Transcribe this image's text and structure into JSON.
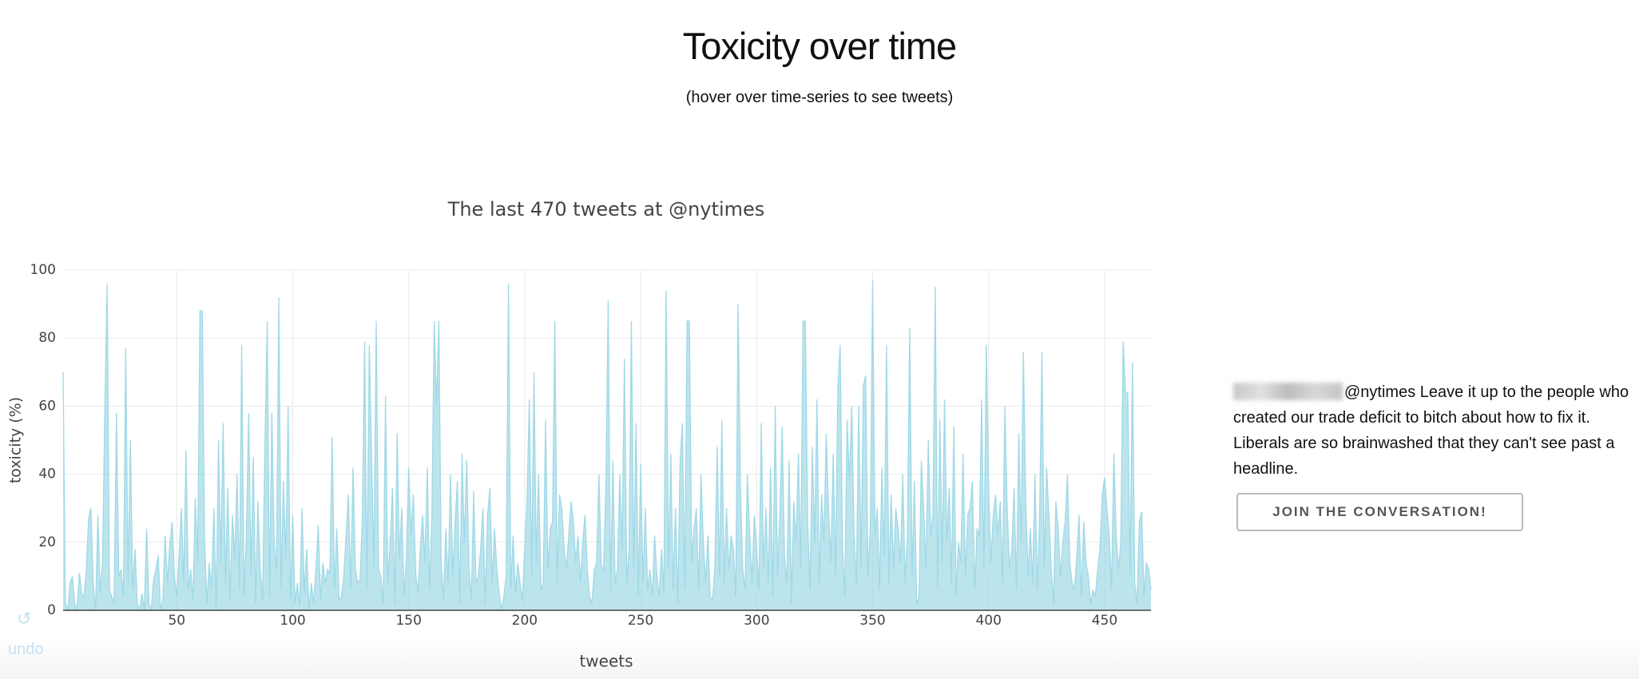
{
  "header": {
    "title": "Toxicity over time",
    "subtitle": "(hover over time-series to see tweets)"
  },
  "chart_data": {
    "type": "area",
    "title": "The last 470 tweets at @nytimes",
    "x_label": "tweets",
    "y_label": "toxicity (%)",
    "color": "#9fd9e6",
    "grid": true,
    "xlim": [
      1,
      470
    ],
    "ylim": [
      0,
      100
    ],
    "xticks": [
      50,
      100,
      150,
      200,
      250,
      300,
      350,
      400,
      450
    ],
    "yticks": [
      0,
      20,
      40,
      60,
      80,
      100
    ],
    "x": [
      1,
      2,
      3,
      4,
      5,
      6,
      7,
      8,
      9,
      10,
      11,
      12,
      13,
      14,
      15,
      16,
      17,
      18,
      19,
      20,
      21,
      22,
      23,
      24,
      25,
      26,
      27,
      28,
      29,
      30,
      31,
      32,
      33,
      34,
      35,
      36,
      37,
      38,
      39,
      40,
      41,
      42,
      43,
      44,
      45,
      46,
      47,
      48,
      49,
      50,
      51,
      52,
      53,
      54,
      55,
      56,
      57,
      58,
      59,
      60,
      61,
      62,
      63,
      64,
      65,
      66,
      67,
      68,
      69,
      70,
      71,
      72,
      73,
      74,
      75,
      76,
      77,
      78,
      79,
      80,
      81,
      82,
      83,
      84,
      85,
      86,
      87,
      88,
      89,
      90,
      91,
      92,
      93,
      94,
      95,
      96,
      97,
      98,
      99,
      100,
      101,
      102,
      103,
      104,
      105,
      106,
      107,
      108,
      109,
      110,
      111,
      112,
      113,
      114,
      115,
      116,
      117,
      118,
      119,
      120,
      121,
      122,
      123,
      124,
      125,
      126,
      127,
      128,
      129,
      130,
      131,
      132,
      133,
      134,
      135,
      136,
      137,
      138,
      139,
      140,
      141,
      142,
      143,
      144,
      145,
      146,
      147,
      148,
      149,
      150,
      151,
      152,
      153,
      154,
      155,
      156,
      157,
      158,
      159,
      160,
      161,
      162,
      163,
      164,
      165,
      166,
      167,
      168,
      169,
      170,
      171,
      172,
      173,
      174,
      175,
      176,
      177,
      178,
      179,
      180,
      181,
      182,
      183,
      184,
      185,
      186,
      187,
      188,
      189,
      190,
      191,
      192,
      193,
      194,
      195,
      196,
      197,
      198,
      199,
      200,
      201,
      202,
      203,
      204,
      205,
      206,
      207,
      208,
      209,
      210,
      211,
      212,
      213,
      214,
      215,
      216,
      217,
      218,
      219,
      220,
      221,
      222,
      223,
      224,
      225,
      226,
      227,
      228,
      229,
      230,
      231,
      232,
      233,
      234,
      235,
      236,
      237,
      238,
      239,
      240,
      241,
      242,
      243,
      244,
      245,
      246,
      247,
      248,
      249,
      250,
      251,
      252,
      253,
      254,
      255,
      256,
      257,
      258,
      259,
      260,
      261,
      262,
      263,
      264,
      265,
      266,
      267,
      268,
      269,
      270,
      271,
      272,
      273,
      274,
      275,
      276,
      277,
      278,
      279,
      280,
      281,
      282,
      283,
      284,
      285,
      286,
      287,
      288,
      289,
      290,
      291,
      292,
      293,
      294,
      295,
      296,
      297,
      298,
      299,
      300,
      301,
      302,
      303,
      304,
      305,
      306,
      307,
      308,
      309,
      310,
      311,
      312,
      313,
      314,
      315,
      316,
      317,
      318,
      319,
      320,
      321,
      322,
      323,
      324,
      325,
      326,
      327,
      328,
      329,
      330,
      331,
      332,
      333,
      334,
      335,
      336,
      337,
      338,
      339,
      340,
      341,
      342,
      343,
      344,
      345,
      346,
      347,
      348,
      349,
      350,
      351,
      352,
      353,
      354,
      355,
      356,
      357,
      358,
      359,
      360,
      361,
      362,
      363,
      364,
      365,
      366,
      367,
      368,
      369,
      370,
      371,
      372,
      373,
      374,
      375,
      376,
      377,
      378,
      379,
      380,
      381,
      382,
      383,
      384,
      385,
      386,
      387,
      388,
      389,
      390,
      391,
      392,
      393,
      394,
      395,
      396,
      397,
      398,
      399,
      400,
      401,
      402,
      403,
      404,
      405,
      406,
      407,
      408,
      409,
      410,
      411,
      412,
      413,
      414,
      415,
      416,
      417,
      418,
      419,
      420,
      421,
      422,
      423,
      424,
      425,
      426,
      427,
      428,
      429,
      430,
      431,
      432,
      433,
      434,
      435,
      436,
      437,
      438,
      439,
      440,
      441,
      442,
      443,
      444,
      445,
      446,
      447,
      448,
      449,
      450,
      451,
      452,
      453,
      454,
      455,
      456,
      457,
      458,
      459,
      460,
      461,
      462,
      463,
      464,
      465,
      466,
      467,
      468,
      469,
      470
    ],
    "values": [
      70,
      2,
      0,
      8,
      10,
      2,
      0,
      11,
      5,
      4,
      12,
      27,
      30,
      8,
      0,
      28,
      5,
      14,
      60,
      96,
      6,
      4,
      2,
      58,
      10,
      12,
      4,
      77,
      8,
      50,
      6,
      18,
      2,
      0,
      5,
      0,
      24,
      2,
      0,
      9,
      12,
      16,
      0,
      3,
      22,
      8,
      19,
      26,
      10,
      4,
      16,
      30,
      8,
      47,
      6,
      12,
      3,
      33,
      14,
      88,
      88,
      20,
      2,
      14,
      6,
      30,
      0,
      50,
      14,
      55,
      8,
      36,
      3,
      28,
      15,
      40,
      6,
      78,
      4,
      22,
      58,
      10,
      45,
      2,
      32,
      12,
      3,
      48,
      85,
      4,
      58,
      20,
      12,
      92,
      6,
      38,
      15,
      60,
      3,
      28,
      2,
      8,
      1,
      30,
      5,
      18,
      0,
      8,
      2,
      12,
      25,
      3,
      14,
      8,
      12,
      11,
      51,
      6,
      24,
      3,
      4,
      10,
      22,
      34,
      6,
      42,
      12,
      8,
      9,
      26,
      79,
      6,
      78,
      45,
      12,
      85,
      12,
      10,
      2,
      63,
      8,
      20,
      36,
      2,
      52,
      15,
      30,
      4,
      15,
      42,
      22,
      34,
      11,
      5,
      18,
      28,
      14,
      42,
      6,
      28,
      85,
      60,
      85,
      14,
      3,
      24,
      8,
      40,
      10,
      26,
      38,
      2,
      46,
      20,
      44,
      12,
      3,
      35,
      8,
      10,
      18,
      30,
      2,
      28,
      36,
      8,
      24,
      12,
      5,
      0,
      4,
      10,
      96,
      6,
      22,
      5,
      14,
      8,
      3,
      18,
      32,
      62,
      10,
      70,
      14,
      40,
      6,
      8,
      56,
      12,
      24,
      26,
      85,
      8,
      34,
      30,
      18,
      12,
      22,
      32,
      26,
      14,
      22,
      8,
      20,
      28,
      12,
      4,
      2,
      12,
      14,
      40,
      13,
      12,
      36,
      91,
      6,
      44,
      8,
      12,
      40,
      18,
      74,
      8,
      18,
      85,
      12,
      55,
      4,
      43,
      8,
      30,
      6,
      12,
      4,
      22,
      10,
      4,
      18,
      5,
      94,
      12,
      46,
      6,
      30,
      2,
      44,
      55,
      6,
      85,
      85,
      14,
      24,
      30,
      6,
      40,
      20,
      8,
      22,
      4,
      3,
      13,
      48,
      10,
      56,
      8,
      30,
      12,
      22,
      18,
      4,
      90,
      36,
      12,
      6,
      40,
      22,
      8,
      28,
      18,
      6,
      55,
      12,
      30,
      8,
      42,
      4,
      60,
      10,
      28,
      54,
      16,
      8,
      44,
      2,
      32,
      20,
      46,
      12,
      85,
      85,
      26,
      6,
      48,
      20,
      62,
      8,
      34,
      20,
      52,
      30,
      14,
      46,
      10,
      65,
      78,
      20,
      4,
      56,
      38,
      60,
      22,
      8,
      60,
      12,
      66,
      69,
      10,
      24,
      97,
      22,
      30,
      6,
      42,
      16,
      78,
      8,
      34,
      12,
      30,
      24,
      14,
      40,
      8,
      22,
      83,
      10,
      38,
      2,
      4,
      44,
      30,
      12,
      50,
      22,
      28,
      95,
      6,
      56,
      14,
      62,
      20,
      36,
      8,
      54,
      4,
      20,
      14,
      46,
      10,
      28,
      30,
      38,
      6,
      24,
      22,
      62,
      12,
      78,
      36,
      14,
      28,
      34,
      22,
      32,
      8,
      60,
      30,
      12,
      18,
      36,
      6,
      52,
      20,
      76,
      32,
      10,
      24,
      8,
      40,
      6,
      28,
      76,
      12,
      42,
      28,
      12,
      2,
      32,
      24,
      10,
      20,
      26,
      40,
      14,
      8,
      6,
      16,
      28,
      4,
      26,
      14,
      10,
      2,
      6,
      4,
      12,
      18,
      34,
      39,
      30,
      22,
      6,
      46,
      22,
      12,
      20,
      79,
      64,
      64,
      10,
      73,
      8,
      2,
      26,
      29,
      4,
      14,
      12,
      6
    ]
  },
  "tweet": {
    "text": "@nytimes Leave it up to the people who created our trade deficit to bitch about how to fix it. Liberals are so brainwashed that they can't see past a headline.",
    "button": "JOIN THE CONVERSATION!"
  },
  "controls": {
    "undo": "undo"
  }
}
